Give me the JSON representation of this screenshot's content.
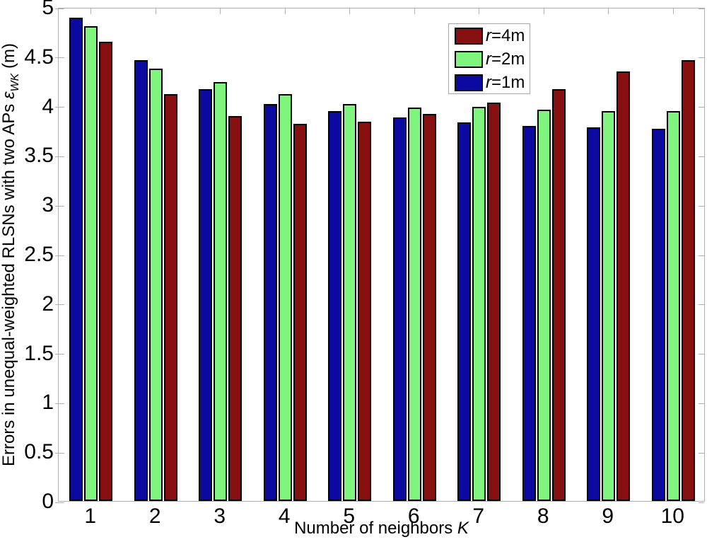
{
  "figure": {
    "background": "#ffffff",
    "axis_color": "#b0b0b0",
    "text_color": "#000000",
    "bar_edge_color": "#000000"
  },
  "chart_data": {
    "type": "bar",
    "title": "",
    "xlabel": {
      "text": "Number of neighbors ",
      "italic": "K"
    },
    "ylabel": {
      "text": "Errors in unequal-weighted RLSNs with two APs ",
      "symbol_italic": "ε",
      "subscript_italic": "WK",
      "suffix": " (m)"
    },
    "categories": [
      1,
      2,
      3,
      4,
      5,
      6,
      7,
      8,
      9,
      10
    ],
    "x_tick_labels": [
      "1",
      "2",
      "3",
      "4",
      "5",
      "6",
      "7",
      "8",
      "9",
      "10"
    ],
    "y_ticks": [
      0,
      0.5,
      1,
      1.5,
      2,
      2.5,
      3,
      3.5,
      4,
      4.5,
      5
    ],
    "y_tick_labels": [
      "0",
      "0.5",
      "1",
      "1.5",
      "2",
      "2.5",
      "3",
      "3.5",
      "4",
      "4.5",
      "5"
    ],
    "ylim": [
      0,
      5
    ],
    "grid": false,
    "legend_position": "upper-right-inside",
    "bar_order_left_to_right": [
      "r=1m",
      "r=2m",
      "r=4m"
    ],
    "series": [
      {
        "label": "r=4m",
        "color": "#861010",
        "values": [
          4.65,
          4.12,
          3.9,
          3.82,
          3.84,
          3.92,
          4.03,
          4.17,
          4.35,
          4.46
        ]
      },
      {
        "label": "r=2m",
        "color": "#80f57d",
        "values": [
          4.81,
          4.38,
          4.24,
          4.12,
          4.02,
          3.98,
          3.99,
          3.96,
          3.95,
          3.95
        ]
      },
      {
        "label": "r=1m",
        "color": "#0a0aa0",
        "values": [
          4.89,
          4.46,
          4.17,
          4.02,
          3.95,
          3.88,
          3.83,
          3.8,
          3.78,
          3.77
        ]
      }
    ]
  }
}
